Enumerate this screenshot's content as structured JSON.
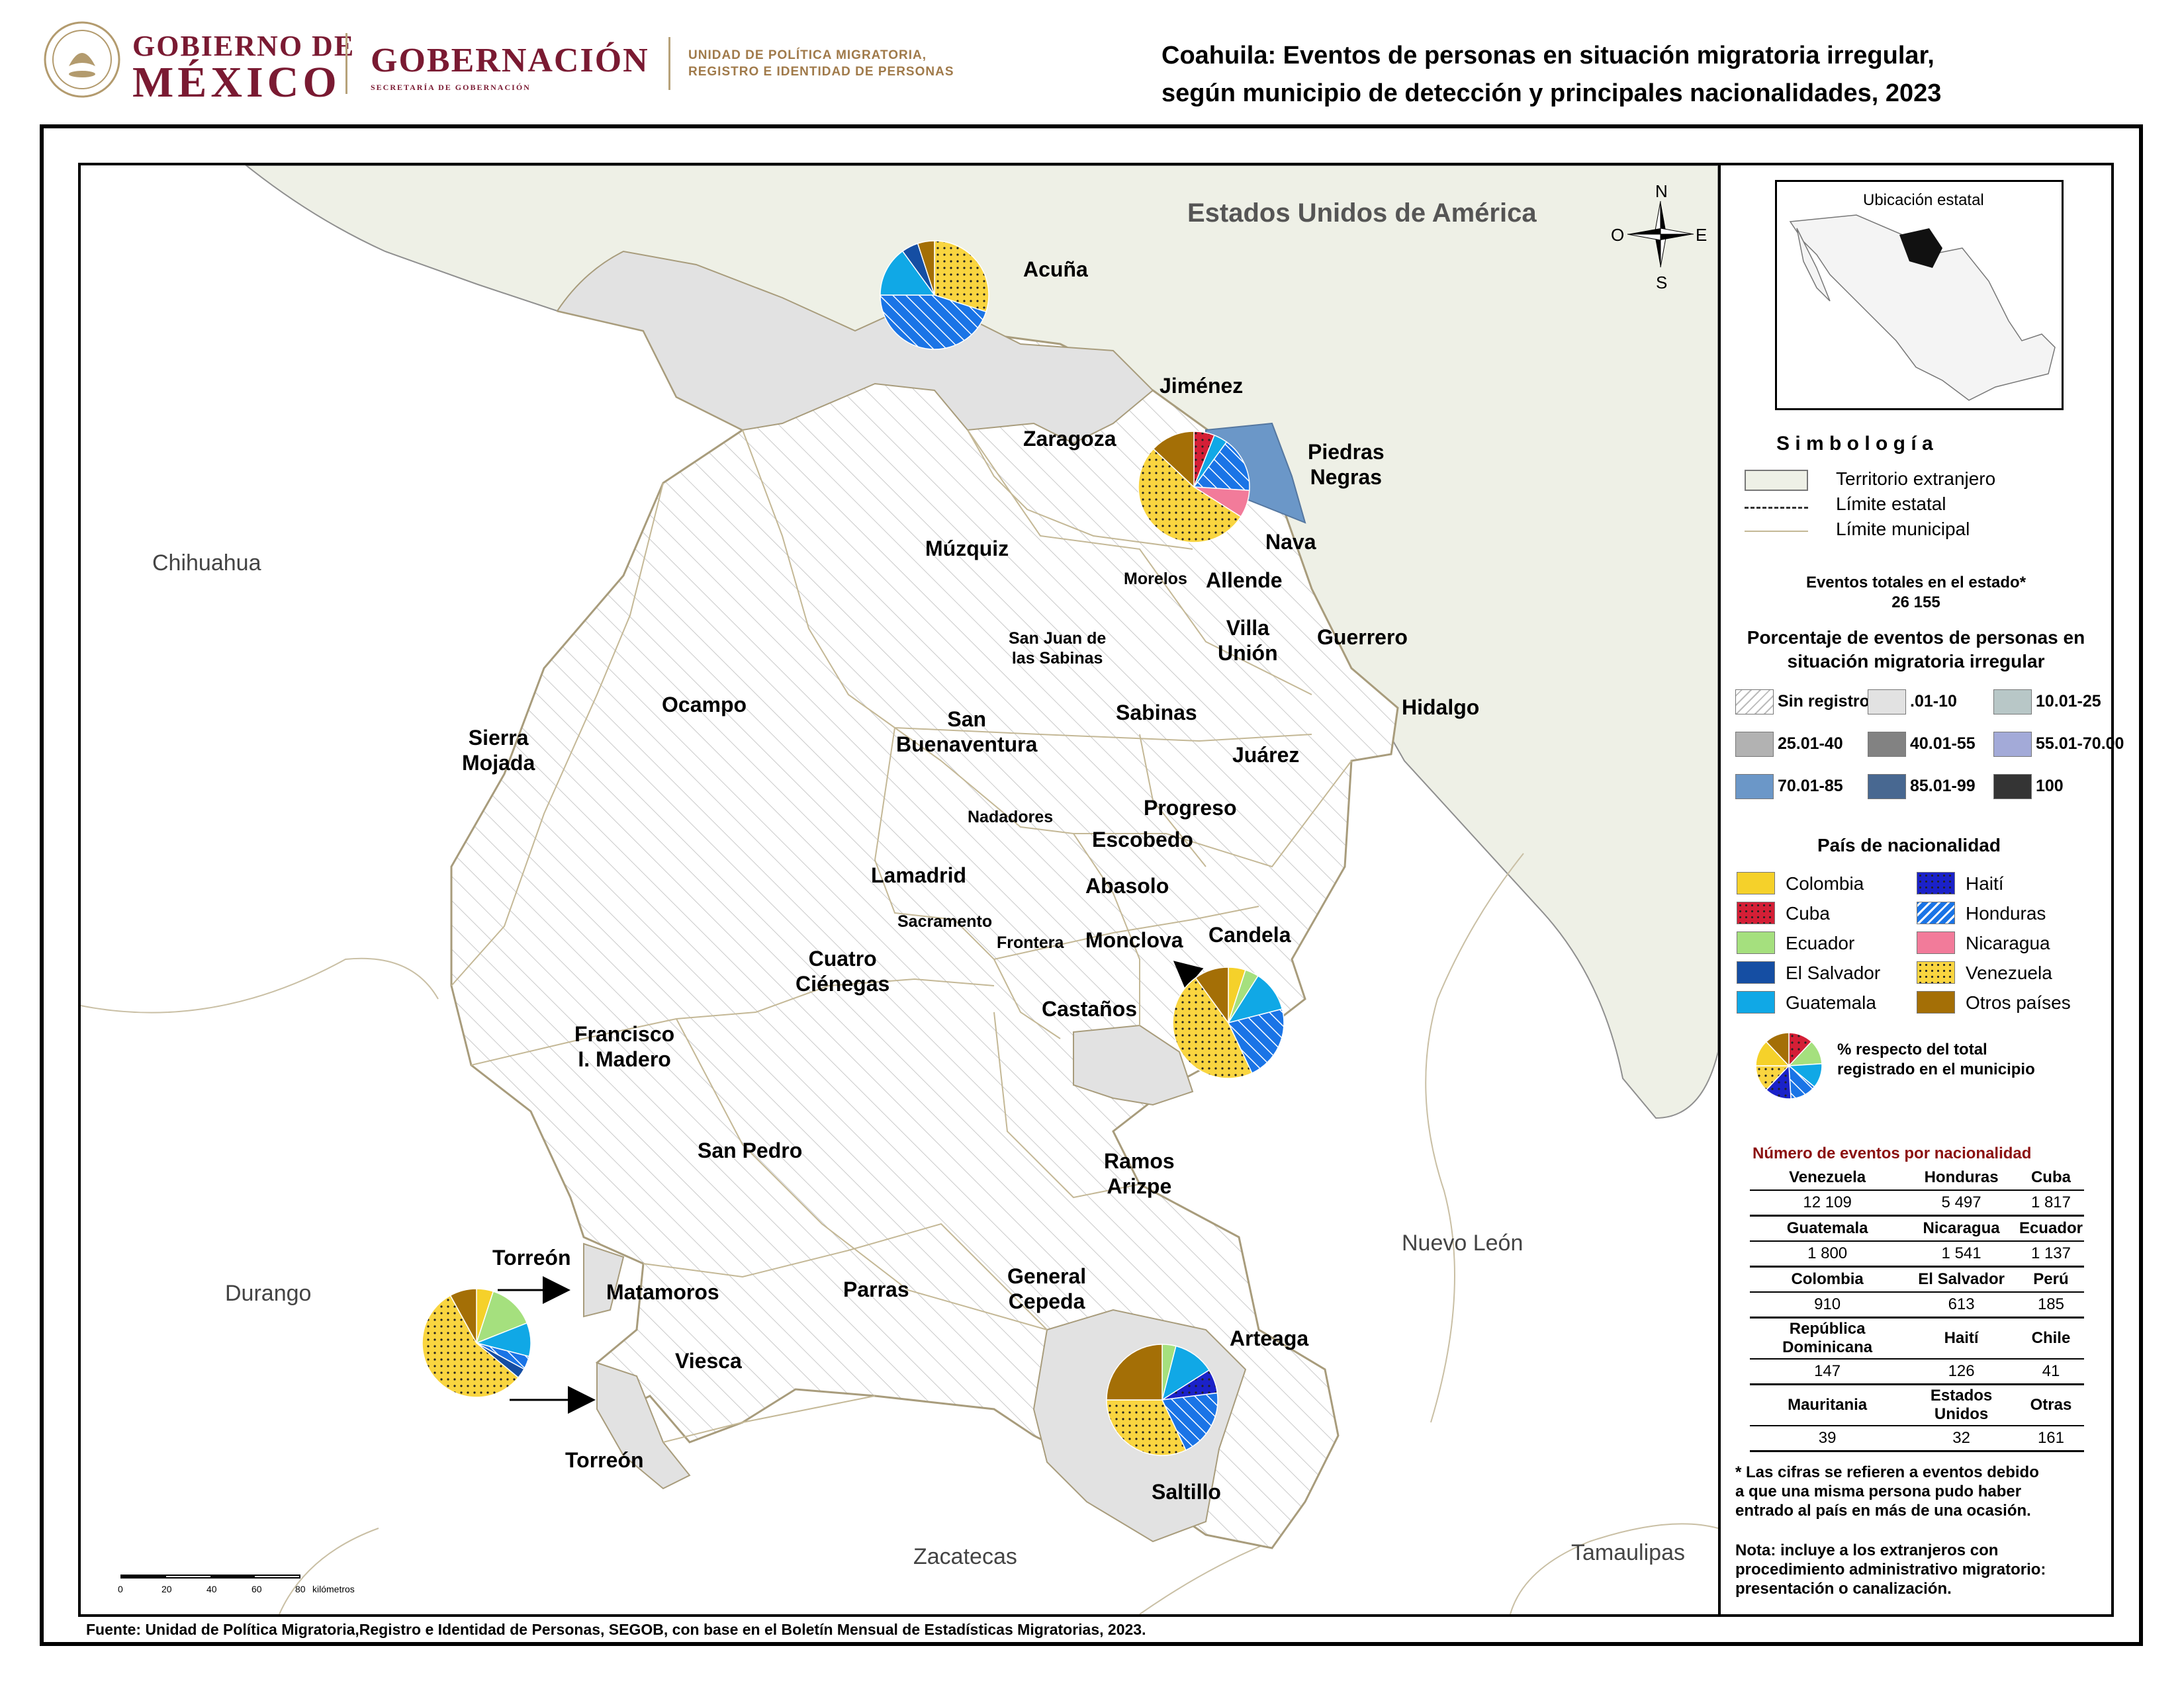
{
  "header": {
    "gobierno_line1": "GOBIERNO DE",
    "gobierno_line2": "MÉXICO",
    "gobernacion": "GOBERNACIÓN",
    "gobernacion_sub": "SECRETARÍA DE GOBERNACIÓN",
    "unidad_line1": "UNIDAD DE POLÍTICA MIGRATORIA,",
    "unidad_line2": "REGISTRO E IDENTIDAD DE PERSONAS",
    "title_line1": "Coahuila: Eventos de personas en situación migratoria irregular,",
    "title_line2": "según municipio de detección y principales nacionalidades, 2023"
  },
  "map": {
    "country_label": "Estados Unidos de América",
    "states": {
      "chihuahua": "Chihuahua",
      "durango": "Durango",
      "zacatecas": "Zacatecas",
      "nuevo_leon": "Nuevo León",
      "tamaulipas": "Tamaulipas"
    },
    "municipios": {
      "acuna": "Acuña",
      "jimenez": "Jiménez",
      "zaragoza": "Zaragoza",
      "piedras_negras_1": "Piedras",
      "piedras_negras_2": "Negras",
      "nava": "Nava",
      "muzquiz": "Múzquiz",
      "morelos": "Morelos",
      "allende": "Allende",
      "villa_union_1": "Villa",
      "villa_union_2": "Unión",
      "guerrero": "Guerrero",
      "san_juan_1": "San Juan de",
      "san_juan_2": "las Sabinas",
      "hidalgo": "Hidalgo",
      "ocampo": "Ocampo",
      "sierra_mojada_1": "Sierra",
      "sierra_mojada_2": "Mojada",
      "san_buenaventura_1": "San",
      "san_buenaventura_2": "Buenaventura",
      "sabinas": "Sabinas",
      "juarez": "Juárez",
      "progreso": "Progreso",
      "nadadores": "Nadadores",
      "escobedo": "Escobedo",
      "lamadrid": "Lamadrid",
      "abasolo": "Abasolo",
      "sacramento": "Sacramento",
      "candela": "Candela",
      "monclova": "Monclova",
      "frontera": "Frontera",
      "cuatro_cienegas_1": "Cuatro",
      "cuatro_cienegas_2": "Ciénegas",
      "castanos": "Castaños",
      "francisco_madero_1": "Francisco",
      "francisco_madero_2": "I. Madero",
      "san_pedro": "San Pedro",
      "ramos_arizpe_1": "Ramos",
      "ramos_arizpe_2": "Arizpe",
      "torreon_top": "Torreón",
      "matamoros": "Matamoros",
      "parras": "Parras",
      "general_cepeda_1": "General",
      "general_cepeda_2": "Cepeda",
      "arteaga": "Arteaga",
      "viesca": "Viesca",
      "torreon_bottom": "Torreón",
      "saltillo": "Saltillo"
    },
    "compass": {
      "n": "N",
      "s": "S",
      "e": "E",
      "o": "O"
    },
    "scale": {
      "ticks": [
        "0",
        "20",
        "40",
        "60",
        "80"
      ],
      "unit": "kilómetros"
    },
    "pies": [
      {
        "municipio": "Acuña",
        "slices": [
          {
            "nacionalidad": "Venezuela",
            "pct": 30
          },
          {
            "nacionalidad": "Honduras",
            "pct": 45
          },
          {
            "nacionalidad": "Guatemala",
            "pct": 15
          },
          {
            "nacionalidad": "El Salvador",
            "pct": 5
          },
          {
            "nacionalidad": "Otros países",
            "pct": 5
          }
        ]
      },
      {
        "municipio": "Piedras Negras",
        "slices": [
          {
            "nacionalidad": "Cuba",
            "pct": 6
          },
          {
            "nacionalidad": "Guatemala",
            "pct": 4
          },
          {
            "nacionalidad": "Honduras",
            "pct": 16
          },
          {
            "nacionalidad": "Nicaragua",
            "pct": 8
          },
          {
            "nacionalidad": "Venezuela",
            "pct": 53
          },
          {
            "nacionalidad": "Otros países",
            "pct": 13
          }
        ]
      },
      {
        "municipio": "Monclova",
        "slices": [
          {
            "nacionalidad": "Colombia",
            "pct": 5
          },
          {
            "nacionalidad": "Ecuador",
            "pct": 4
          },
          {
            "nacionalidad": "Guatemala",
            "pct": 12
          },
          {
            "nacionalidad": "Honduras",
            "pct": 22
          },
          {
            "nacionalidad": "Venezuela",
            "pct": 47
          },
          {
            "nacionalidad": "Otros países",
            "pct": 10
          }
        ]
      },
      {
        "municipio": "Torreón",
        "slices": [
          {
            "nacionalidad": "Colombia",
            "pct": 5
          },
          {
            "nacionalidad": "Ecuador",
            "pct": 14
          },
          {
            "nacionalidad": "Guatemala",
            "pct": 10
          },
          {
            "nacionalidad": "Honduras",
            "pct": 4
          },
          {
            "nacionalidad": "El Salvador",
            "pct": 3
          },
          {
            "nacionalidad": "Venezuela",
            "pct": 56
          },
          {
            "nacionalidad": "Otros países",
            "pct": 8
          }
        ]
      },
      {
        "municipio": "Saltillo",
        "slices": [
          {
            "nacionalidad": "Ecuador",
            "pct": 4
          },
          {
            "nacionalidad": "Guatemala",
            "pct": 12
          },
          {
            "nacionalidad": "Haití",
            "pct": 7
          },
          {
            "nacionalidad": "Honduras",
            "pct": 20
          },
          {
            "nacionalidad": "Venezuela",
            "pct": 32
          },
          {
            "nacionalidad": "Otros países",
            "pct": 25
          }
        ]
      },
      {
        "municipio": "",
        "slices": [
          {
            "nacionalidad": "Cuba",
            "pct": 12
          },
          {
            "nacionalidad": "Ecuador",
            "pct": 12
          },
          {
            "nacionalidad": "Guatemala",
            "pct": 12
          },
          {
            "nacionalidad": "Honduras",
            "pct": 13
          },
          {
            "nacionalidad": "Haití",
            "pct": 13
          },
          {
            "nacionalidad": "Venezuela",
            "pct": 13
          },
          {
            "nacionalidad": "Colombia",
            "pct": 13
          },
          {
            "nacionalidad": "Otros países",
            "pct": 12
          }
        ]
      }
    ]
  },
  "legend": {
    "ubicacion": "Ubicación estatal",
    "simbologia": "S i m b o l o g í a",
    "territorio": "Territorio extranjero",
    "limite_estatal": "Límite estatal",
    "limite_municipal": "Límite municipal",
    "eventos_totales_label": "Eventos totales en el estado*",
    "eventos_totales_value": "26 155",
    "porcentaje_title_1": "Porcentaje de eventos de personas en",
    "porcentaje_title_2": "situación migratoria irregular",
    "classes": [
      {
        "label": "Sin registro",
        "color": "#ffffff"
      },
      {
        "label": ".01-10",
        "color": "#e2e2e2"
      },
      {
        "label": "10.01-25",
        "color": "#b8c7c7"
      },
      {
        "label": "25.01-40",
        "color": "#b2b2b2"
      },
      {
        "label": "40.01-55",
        "color": "#828282"
      },
      {
        "label": "55.01-70.00",
        "color": "#a3aad8"
      },
      {
        "label": "70.01-85",
        "color": "#6b97c8"
      },
      {
        "label": "85.01-99",
        "color": "#486891"
      },
      {
        "label": "100",
        "color": "#343434"
      }
    ],
    "pais_title": "País de nacionalidad",
    "nationalities": [
      {
        "label": "Colombia",
        "color": "#f5d12a",
        "pattern": "solid"
      },
      {
        "label": "Cuba",
        "color": "#d41f36",
        "pattern": "dots"
      },
      {
        "label": "Ecuador",
        "color": "#a5e07e",
        "pattern": "solid"
      },
      {
        "label": "El Salvador",
        "color": "#154ea3",
        "pattern": "solid"
      },
      {
        "label": "Guatemala",
        "color": "#10a8e6",
        "pattern": "solid"
      },
      {
        "label": "Haití",
        "color": "#1b22c9",
        "pattern": "dots"
      },
      {
        "label": "Honduras",
        "color": "#1a74e6",
        "pattern": "hatch"
      },
      {
        "label": "Nicaragua",
        "color": "#f27b9a",
        "pattern": "solid"
      },
      {
        "label": "Venezuela",
        "color": "#f9d540",
        "pattern": "dots"
      },
      {
        "label": "Otros países",
        "color": "#a46f06",
        "pattern": "solid"
      }
    ],
    "pie_note_1": "%  respecto del total",
    "pie_note_2": "registrado en el municipio",
    "table_title": "Número de eventos por nacionalidad",
    "table": [
      {
        "headers": [
          "Venezuela",
          "Honduras",
          "Cuba"
        ],
        "values": [
          "12 109",
          "5 497",
          "1 817"
        ]
      },
      {
        "headers": [
          "Guatemala",
          "Nicaragua",
          "Ecuador"
        ],
        "values": [
          "1 800",
          "1 541",
          "1 137"
        ]
      },
      {
        "headers": [
          "Colombia",
          "El Salvador",
          "Perú"
        ],
        "values": [
          "910",
          "613",
          "185"
        ]
      },
      {
        "headers": [
          "República Dominicana",
          "Haití",
          "Chile"
        ],
        "values": [
          "147",
          "126",
          "41"
        ]
      },
      {
        "headers": [
          "Mauritania",
          "Estados Unidos",
          "Otras"
        ],
        "values": [
          "39",
          "32",
          "161"
        ]
      }
    ],
    "nota_asterisco": "* Las cifras se refieren a eventos debido a que una misma persona pudo haber entrado al país en más de una ocasión.",
    "nota": "Nota: incluye a los extranjeros con procedimiento administrativo migratorio: presentación o canalización."
  },
  "footer": {
    "fuente": "Fuente: Unidad de Política Migratoria,Registro e Identidad de Personas, SEGOB, con base en el Boletín Mensual de Estadísticas Migratorias, 2023."
  }
}
